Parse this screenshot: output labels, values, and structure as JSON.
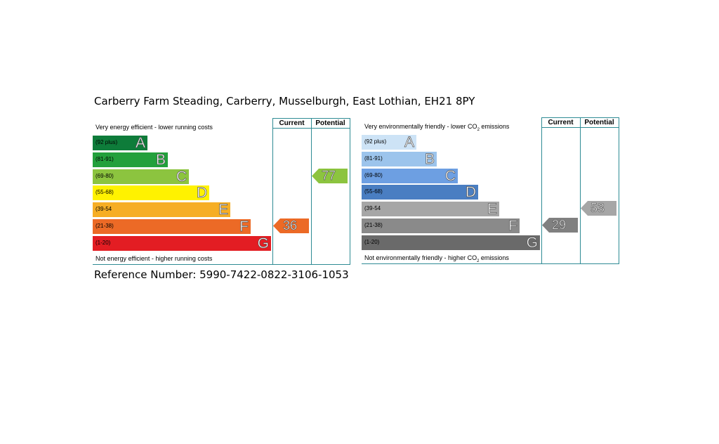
{
  "address": "Carberry Farm Steading, Carberry, Musselburgh, East Lothian, EH21 8PY",
  "reference": "Reference Number: 5990-7422-0822-3106-1053",
  "chart_data": [
    {
      "type": "bar",
      "title": "",
      "columns": [
        "Current",
        "Potential"
      ],
      "top_caption": "Very energy efficient - lower running costs",
      "bottom_caption": "Not energy efficient - higher running costs",
      "bands": [
        {
          "letter": "A",
          "range": "(92 plus)",
          "min": 92,
          "color": "#0e7c3a"
        },
        {
          "letter": "B",
          "range": "(81-91)",
          "min": 81,
          "color": "#23a03c"
        },
        {
          "letter": "C",
          "range": "(69-80)",
          "min": 69,
          "color": "#8cc43f"
        },
        {
          "letter": "D",
          "range": "(55-68)",
          "min": 55,
          "color": "#fff200"
        },
        {
          "letter": "E",
          "range": "(39-54",
          "min": 39,
          "color": "#f6ae25"
        },
        {
          "letter": "F",
          "range": "(21-38)",
          "min": 21,
          "color": "#ec6a26"
        },
        {
          "letter": "G",
          "range": "(1-20)",
          "min": 1,
          "color": "#e31d23"
        }
      ],
      "current": {
        "value": 36,
        "band": "F",
        "color": "#ec6a26"
      },
      "potential": {
        "value": 77,
        "band": "C",
        "color": "#8cc43f"
      }
    },
    {
      "type": "bar",
      "title": "",
      "columns": [
        "Current",
        "Potential"
      ],
      "top_caption": {
        "before": "Very environmentally friendly - lower CO",
        "sub": "2",
        "after": " emissions"
      },
      "bottom_caption": {
        "before": "Not environmentally friendly - higher CO",
        "sub": "2",
        "after": " emissions"
      },
      "bands": [
        {
          "letter": "A",
          "range": "(92 plus)",
          "min": 92,
          "color": "#cde3f6"
        },
        {
          "letter": "B",
          "range": "(81-91)",
          "min": 81,
          "color": "#9cc4ec"
        },
        {
          "letter": "C",
          "range": "(69-80)",
          "min": 69,
          "color": "#6d9fe2"
        },
        {
          "letter": "D",
          "range": "(55-68)",
          "min": 55,
          "color": "#4a7ec2"
        },
        {
          "letter": "E",
          "range": "(39-54",
          "min": 39,
          "color": "#a6a6a6"
        },
        {
          "letter": "F",
          "range": "(21-38)",
          "min": 21,
          "color": "#8a8a8a"
        },
        {
          "letter": "G",
          "range": "(1-20)",
          "min": 1,
          "color": "#6a6a6a"
        }
      ],
      "current": {
        "value": 29,
        "band": "F",
        "color": "#808080"
      },
      "potential": {
        "value": 53,
        "band": "E",
        "color": "#a6a6a6"
      }
    }
  ]
}
